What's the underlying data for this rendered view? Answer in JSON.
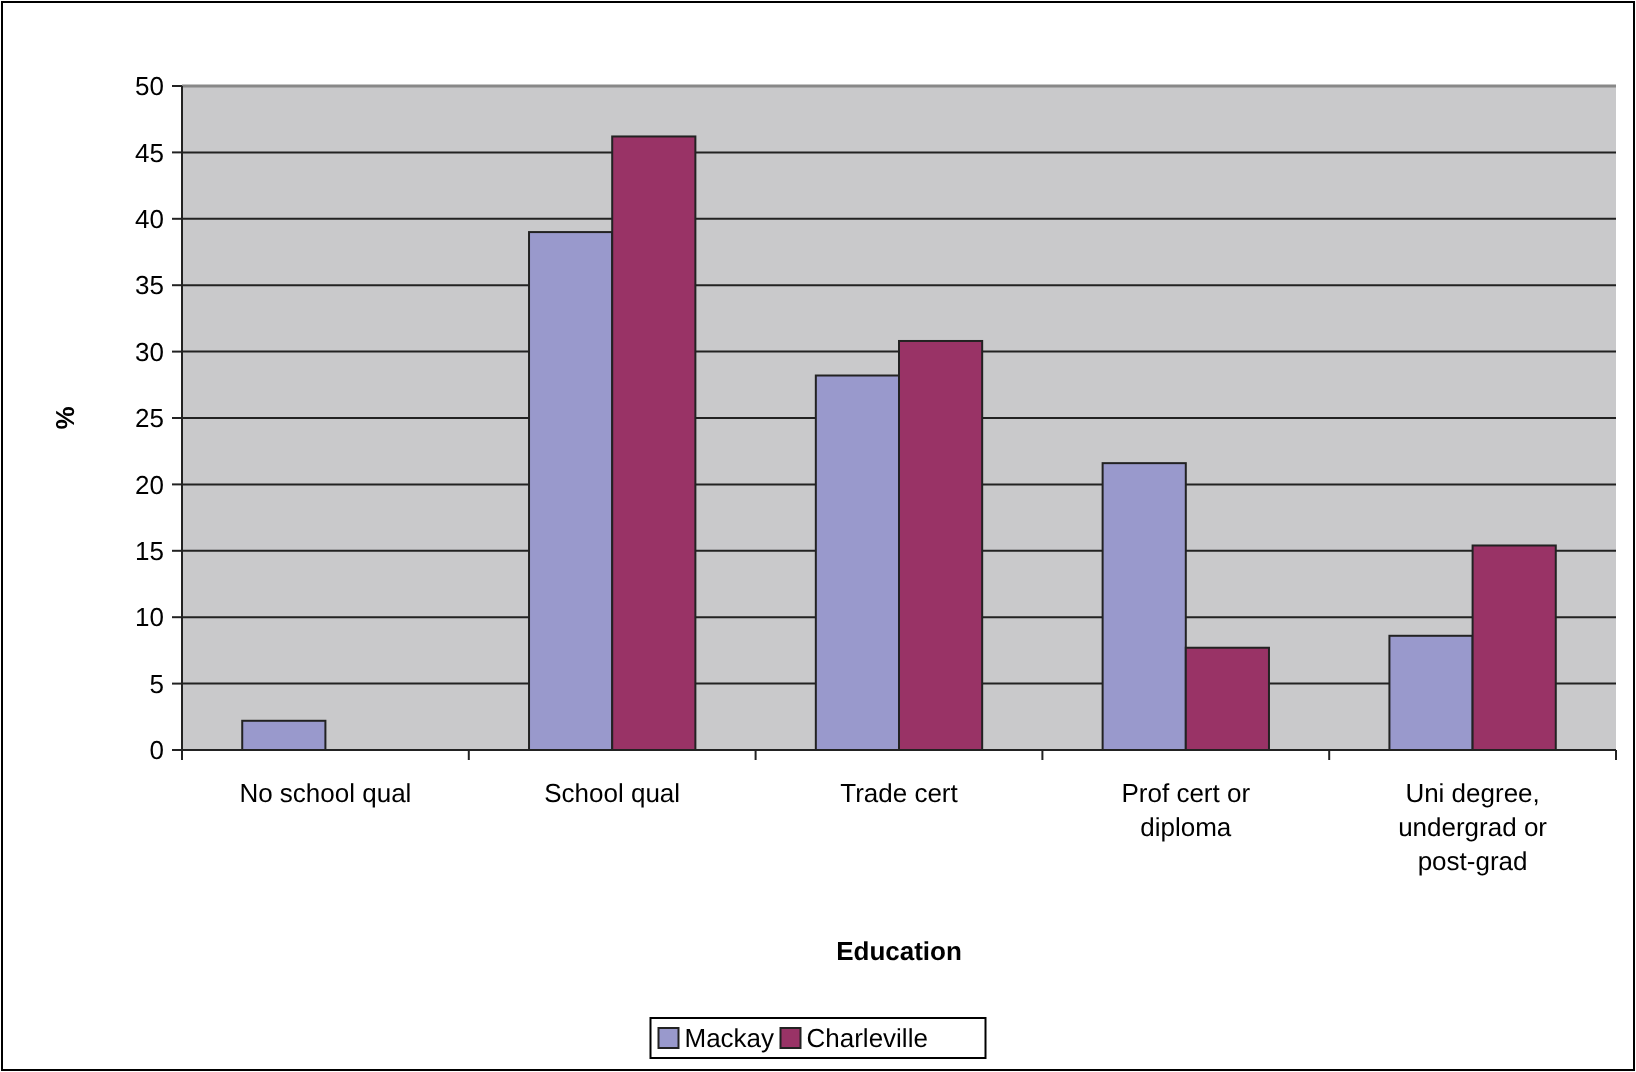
{
  "chart_data": {
    "type": "bar",
    "xlabel": "Education",
    "ylabel": "%",
    "categories": [
      "No school qual",
      "School qual",
      "Trade cert",
      "Prof cert or diploma",
      "Uni degree, undergrad or post-grad"
    ],
    "series": [
      {
        "name": "Mackay",
        "color": "#9999cc",
        "values": [
          2.2,
          39,
          28.2,
          21.6,
          8.6
        ]
      },
      {
        "name": "Charleville",
        "color": "#993366",
        "values": [
          0,
          46.2,
          30.8,
          7.7,
          15.4
        ]
      }
    ],
    "ylim": [
      0,
      50
    ],
    "yticks": [
      0,
      5,
      10,
      15,
      20,
      25,
      30,
      35,
      40,
      45,
      50
    ],
    "grid": "y",
    "legend": "bottom"
  }
}
